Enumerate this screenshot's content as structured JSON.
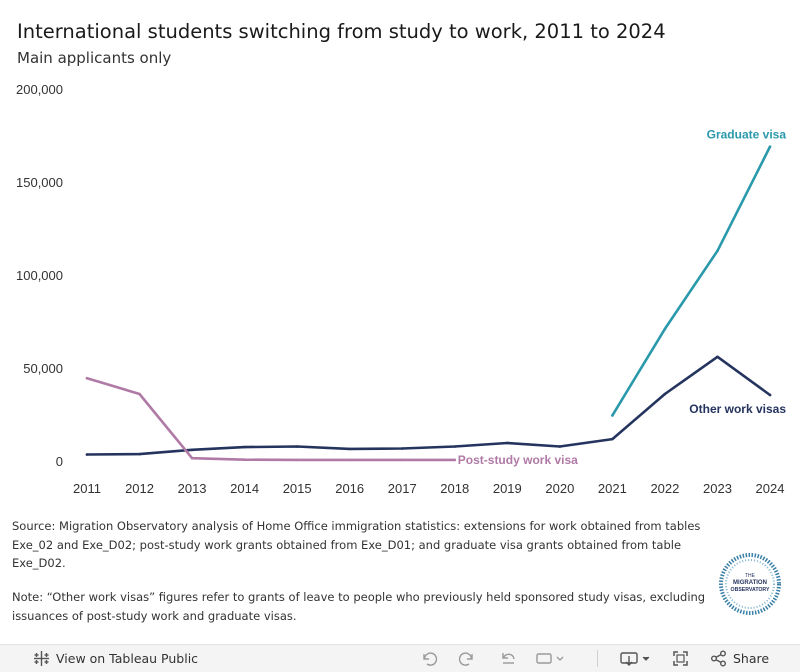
{
  "title": "International students switching from study to work, 2011 to 2024",
  "subtitle": "Main applicants only",
  "chart_data": {
    "type": "line",
    "x": [
      2011,
      2012,
      2013,
      2014,
      2015,
      2016,
      2017,
      2018,
      2019,
      2020,
      2021,
      2022,
      2023,
      2024
    ],
    "x_tick_labels": [
      "2011",
      "2012",
      "2013",
      "2014",
      "2015",
      "2016",
      "2017",
      "2018",
      "2019",
      "2020",
      "2021",
      "2022",
      "2023",
      "2024"
    ],
    "ylim": [
      0,
      200000
    ],
    "y_ticks": [
      0,
      50000,
      100000,
      150000,
      200000
    ],
    "y_tick_labels": [
      "0",
      "50,000",
      "100,000",
      "150,000",
      "200,000"
    ],
    "grid": false,
    "series": [
      {
        "name": "Other work visas",
        "label": "Other work visas",
        "color": "#25345e",
        "x": [
          2011,
          2012,
          2013,
          2014,
          2015,
          2016,
          2017,
          2018,
          2019,
          2020,
          2021,
          2022,
          2023,
          2024
        ],
        "values": [
          3500,
          3700,
          6000,
          7500,
          7800,
          6500,
          6700,
          7800,
          9700,
          7800,
          11800,
          36000,
          56000,
          35500
        ]
      },
      {
        "name": "Post-study work visa",
        "label": "Post-study work visa",
        "color": "#b07aa6",
        "x": [
          2011,
          2012,
          2013,
          2014,
          2015,
          2016,
          2017,
          2018
        ],
        "values": [
          44500,
          36000,
          1500,
          700,
          600,
          600,
          600,
          600
        ]
      },
      {
        "name": "Graduate visa",
        "label": "Graduate visa",
        "color": "#2a99ab",
        "x": [
          2021,
          2022,
          2023,
          2024
        ],
        "values": [
          24500,
          71000,
          113000,
          169000
        ]
      }
    ]
  },
  "notes": {
    "source": "Source: Migration Observatory analysis of Home Office immigration statistics: extensions for work obtained from tables Exe_02 and Exe_D02; post-study work grants obtained from Exe_D01; and graduate visa grants obtained from table Exe_D02.",
    "note": "Note: “Other work visas” figures refer to grants of leave to people who previously held sponsored study visas, excluding issuances of post-study work and graduate visas."
  },
  "logo": {
    "line1": "THE",
    "line2": "MIGRATION",
    "line3": "OBSERVATORY"
  },
  "toolbar": {
    "view_label": "View on Tableau Public",
    "share_label": "Share",
    "icons": [
      "tableau-icon",
      "undo-icon",
      "redo-icon",
      "revert-icon",
      "pause-icon",
      "download-icon",
      "fullscreen-icon",
      "share-icon"
    ]
  }
}
